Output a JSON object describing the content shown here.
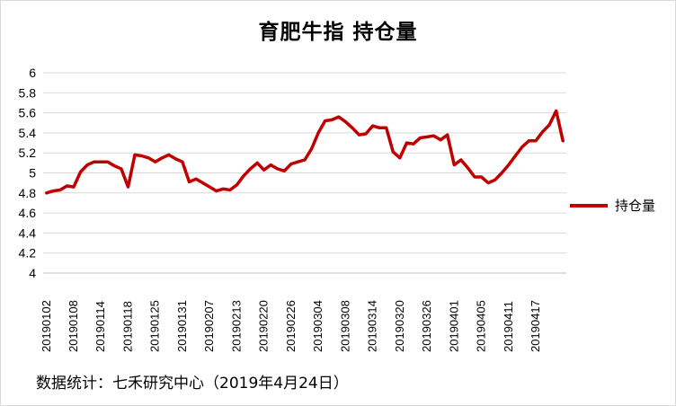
{
  "chart_data": {
    "type": "line",
    "title": "育肥牛指 持仓量",
    "legend_position": "right",
    "grid": true,
    "ylim": [
      4,
      6
    ],
    "yticks": [
      "4",
      "4.2",
      "4.4",
      "4.6",
      "4.8",
      "5",
      "5.2",
      "5.4",
      "5.6",
      "5.8",
      "6"
    ],
    "xtick_labels": [
      "20190102",
      "20190108",
      "20190114",
      "20190118",
      "20190125",
      "20190131",
      "20190207",
      "20190213",
      "20190220",
      "20190226",
      "20190304",
      "20190308",
      "20190314",
      "20190320",
      "20190326",
      "20190401",
      "20190405",
      "20190411",
      "20190417"
    ],
    "series": [
      {
        "name": "持仓量",
        "color": "#c00000",
        "values": [
          4.8,
          4.82,
          4.83,
          4.87,
          4.86,
          5.01,
          5.08,
          5.11,
          5.11,
          5.11,
          5.07,
          5.04,
          4.86,
          5.18,
          5.17,
          5.15,
          5.11,
          5.15,
          5.18,
          5.14,
          5.11,
          4.91,
          4.94,
          4.9,
          4.86,
          4.82,
          4.84,
          4.83,
          4.88,
          4.97,
          5.04,
          5.1,
          5.03,
          5.08,
          5.04,
          5.02,
          5.09,
          5.11,
          5.13,
          5.24,
          5.4,
          5.52,
          5.53,
          5.56,
          5.51,
          5.45,
          5.38,
          5.39,
          5.47,
          5.45,
          5.45,
          5.21,
          5.15,
          5.3,
          5.29,
          5.35,
          5.36,
          5.37,
          5.33,
          5.38,
          5.08,
          5.13,
          5.05,
          4.96,
          4.96,
          4.9,
          4.93,
          5.0,
          5.08,
          5.17,
          5.26,
          5.32,
          5.32,
          5.41,
          5.48,
          5.62,
          5.32
        ]
      }
    ]
  },
  "footer": "数据统计：七禾研究中心（2019年4月24日）"
}
